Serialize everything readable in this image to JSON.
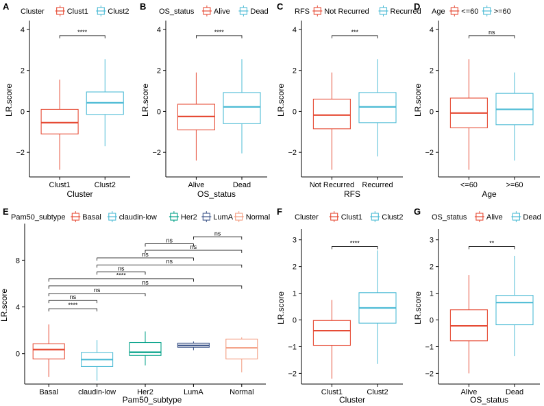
{
  "colors": {
    "clust1": "#E64B35",
    "clust2": "#4DBBD5",
    "alive": "#E64B35",
    "dead": "#4DBBD5",
    "basal": "#E64B35",
    "claudin_low": "#4DBBD5",
    "her2": "#00A087",
    "lumA": "#3C5488",
    "normal": "#F39B7F"
  },
  "chart_data": [
    {
      "panel": "A",
      "type": "box",
      "legend_title": "Cluster",
      "legend_position": "top-left",
      "xlabel": "Cluster",
      "ylabel": "LR.score",
      "ylim": [
        -3.2,
        4.3
      ],
      "yticks": [
        -2,
        0,
        2,
        4
      ],
      "groups": [
        {
          "name": "Clust1",
          "color": "#E64B35",
          "min": -2.85,
          "q1": -1.1,
          "median": -0.55,
          "q3": 0.1,
          "max": 1.55
        },
        {
          "name": "Clust2",
          "color": "#4DBBD5",
          "min": -1.7,
          "q1": -0.15,
          "median": 0.42,
          "q3": 0.95,
          "max": 2.55
        }
      ],
      "comparisons": [
        {
          "groups": [
            0,
            1
          ],
          "y": 3.7,
          "label": "****"
        }
      ]
    },
    {
      "panel": "B",
      "type": "box",
      "legend_title": "OS_status",
      "legend_position": "top-left",
      "xlabel": "OS_status",
      "ylabel": "LR.score",
      "ylim": [
        -3.2,
        4.3
      ],
      "yticks": [
        -2,
        0,
        2,
        4
      ],
      "groups": [
        {
          "name": "Alive",
          "color": "#E64B35",
          "min": -2.4,
          "q1": -0.9,
          "median": -0.25,
          "q3": 0.35,
          "max": 1.9
        },
        {
          "name": "Dead",
          "color": "#4DBBD5",
          "min": -2.05,
          "q1": -0.6,
          "median": 0.22,
          "q3": 0.92,
          "max": 2.55
        }
      ],
      "comparisons": [
        {
          "groups": [
            0,
            1
          ],
          "y": 3.7,
          "label": "****"
        }
      ]
    },
    {
      "panel": "C",
      "type": "box",
      "legend_title": "RFS",
      "legend_position": "top-left",
      "xlabel": "RFS",
      "ylabel": "LR.score",
      "ylim": [
        -3.2,
        4.3
      ],
      "yticks": [
        -2,
        0,
        2,
        4
      ],
      "groups": [
        {
          "name": "Not Recurred",
          "color": "#E64B35",
          "min": -2.85,
          "q1": -0.85,
          "median": -0.18,
          "q3": 0.6,
          "max": 1.9
        },
        {
          "name": "Recurred",
          "color": "#4DBBD5",
          "min": -2.2,
          "q1": -0.55,
          "median": 0.22,
          "q3": 0.92,
          "max": 2.55
        }
      ],
      "comparisons": [
        {
          "groups": [
            0,
            1
          ],
          "y": 3.7,
          "label": "***"
        }
      ]
    },
    {
      "panel": "D",
      "type": "box",
      "legend_title": "Age",
      "legend_position": "top-left",
      "xlabel": "Age",
      "ylabel": "LR.score",
      "ylim": [
        -3.2,
        4.3
      ],
      "yticks": [
        -2,
        0,
        2,
        4
      ],
      "groups": [
        {
          "name": "<=60",
          "color": "#E64B35",
          "min": -2.85,
          "q1": -0.8,
          "median": -0.08,
          "q3": 0.65,
          "max": 2.55
        },
        {
          "name": ">=60",
          "color": "#4DBBD5",
          "min": -2.4,
          "q1": -0.65,
          "median": 0.1,
          "q3": 0.88,
          "max": 1.9
        }
      ],
      "comparisons": [
        {
          "groups": [
            0,
            1
          ],
          "y": 3.7,
          "label": "ns"
        }
      ]
    },
    {
      "panel": "E",
      "type": "box",
      "legend_title": "Pam50_subtype",
      "legend_position": "top-left",
      "xlabel": "Pam50_subtype",
      "ylabel": "LR.score",
      "ylim": [
        -2.6,
        10.9
      ],
      "yticks": [
        0,
        4,
        8
      ],
      "groups": [
        {
          "name": "Basal",
          "color": "#E64B35",
          "min": -2.0,
          "q1": -0.45,
          "median": 0.35,
          "q3": 0.85,
          "max": 2.5
        },
        {
          "name": "claudin-low",
          "color": "#4DBBD5",
          "min": -2.3,
          "q1": -1.1,
          "median": -0.5,
          "q3": 0.1,
          "max": 1.15
        },
        {
          "name": "Her2",
          "color": "#00A087",
          "min": -1.0,
          "q1": -0.15,
          "median": 0.12,
          "q3": 0.95,
          "max": 1.9
        },
        {
          "name": "LumA",
          "color": "#3C5488",
          "min": 0.3,
          "q1": 0.55,
          "median": 0.7,
          "q3": 0.9,
          "max": 1.05
        },
        {
          "name": "Normal",
          "color": "#F39B7F",
          "min": -1.6,
          "q1": -0.45,
          "median": 0.5,
          "q3": 1.25,
          "max": 1.4
        }
      ],
      "comparisons": [
        {
          "groups": [
            3,
            4
          ],
          "y": 10.0,
          "label": "ns"
        },
        {
          "groups": [
            2,
            3
          ],
          "y": 9.4,
          "label": "ns"
        },
        {
          "groups": [
            2,
            4
          ],
          "y": 8.85,
          "label": "ns"
        },
        {
          "groups": [
            1,
            3
          ],
          "y": 8.2,
          "label": "ns"
        },
        {
          "groups": [
            1,
            4
          ],
          "y": 7.6,
          "label": "ns"
        },
        {
          "groups": [
            1,
            2
          ],
          "y": 7.0,
          "label": "ns"
        },
        {
          "groups": [
            0,
            3
          ],
          "y": 6.4,
          "label": "****"
        },
        {
          "groups": [
            0,
            4
          ],
          "y": 5.8,
          "label": "ns"
        },
        {
          "groups": [
            0,
            2
          ],
          "y": 5.15,
          "label": "ns"
        },
        {
          "groups": [
            0,
            1
          ],
          "y": 4.55,
          "label": "ns"
        },
        {
          "groups": [
            0,
            1
          ],
          "y": 3.85,
          "label": "****"
        }
      ]
    },
    {
      "panel": "F",
      "type": "box",
      "legend_title": "Cluster",
      "legend_position": "top-left",
      "xlabel": "Cluster",
      "ylabel": "LR.score",
      "ylim": [
        -2.4,
        3.3
      ],
      "yticks": [
        -2,
        -1,
        0,
        1,
        2,
        3
      ],
      "groups": [
        {
          "name": "Clust1",
          "color": "#E64B35",
          "min": -2.2,
          "q1": -0.95,
          "median": -0.4,
          "q3": -0.02,
          "max": 0.75
        },
        {
          "name": "Clust2",
          "color": "#4DBBD5",
          "min": -1.65,
          "q1": -0.12,
          "median": 0.45,
          "q3": 1.02,
          "max": 2.6
        }
      ],
      "comparisons": [
        {
          "groups": [
            0,
            1
          ],
          "y": 2.75,
          "label": "****"
        }
      ]
    },
    {
      "panel": "G",
      "type": "box",
      "legend_title": "OS_status",
      "legend_position": "top-left",
      "xlabel": "OS_status",
      "ylabel": "LR.score",
      "ylim": [
        -2.4,
        3.3
      ],
      "yticks": [
        -2,
        -1,
        0,
        1,
        2,
        3
      ],
      "groups": [
        {
          "name": "Alive",
          "color": "#E64B35",
          "min": -2.0,
          "q1": -0.78,
          "median": -0.22,
          "q3": 0.38,
          "max": 1.68
        },
        {
          "name": "Dead",
          "color": "#4DBBD5",
          "min": -1.35,
          "q1": -0.18,
          "median": 0.65,
          "q3": 0.92,
          "max": 2.4
        }
      ],
      "comparisons": [
        {
          "groups": [
            0,
            1
          ],
          "y": 2.75,
          "label": "**"
        }
      ]
    }
  ]
}
